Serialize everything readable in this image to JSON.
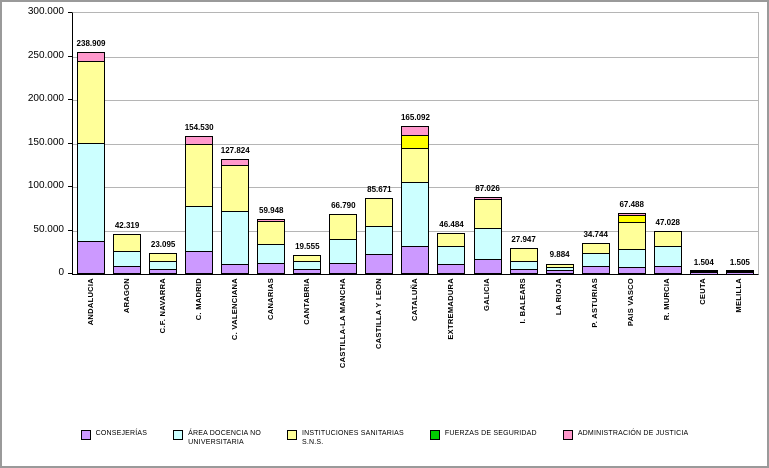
{
  "chart_data": {
    "type": "bar",
    "stacked": true,
    "title": "",
    "xlabel": "",
    "ylabel": "",
    "ylim": [
      0,
      300000
    ],
    "ytick_interval": 50000,
    "ytick_labels": [
      "300.000",
      "250.000",
      "200.000",
      "150.000",
      "100.000",
      "50.000",
      "0"
    ],
    "grid": true,
    "legend_position": "bottom",
    "categories": [
      "ANDALUCIA",
      "ARAGON",
      "C.F. NAVARRA",
      "C. MADRID",
      "C. VALENCIANA",
      "CANARIAS",
      "CANTABRIA",
      "CASTILLA-LA MANCHA",
      "CASTILLA Y LEON",
      "CATALUÑA",
      "EXTREMADURA",
      "GALICIA",
      "I. BALEARS",
      "LA RIOJA",
      "P. ASTURIAS",
      "PAIS VASCO",
      "R. MURCIA",
      "CEUTA",
      "MELILLA"
    ],
    "total_labels": [
      "238.909",
      "42.319",
      "23.095",
      "154.530",
      "127.824",
      "59.948",
      "19.555",
      "66.790",
      "85.671",
      "165.092",
      "46.484",
      "87.026",
      "27.947",
      "9.884",
      "34.744",
      "67.488",
      "47.028",
      "1.504",
      "1.505"
    ],
    "totals": [
      238909,
      42319,
      23095,
      154530,
      127824,
      59948,
      19555,
      66790,
      85671,
      165092,
      46484,
      87026,
      27947,
      9884,
      34744,
      67488,
      47028,
      1504,
      1505
    ],
    "series": [
      {
        "name": "CONSEJERÍAS",
        "color": "#CC99FF",
        "values_estimated": true,
        "values": [
          36000,
          7000,
          3100,
          24000,
          9000,
          10500,
          3100,
          10700,
          20400,
          30000,
          9000,
          14600,
          3100,
          2000,
          7000,
          6000,
          7000,
          400,
          400
        ]
      },
      {
        "name": "ÁREA DOCENCIA NO UNIVERSITARIA",
        "color": "#CCFFFF",
        "values_estimated": true,
        "values": [
          112000,
          17200,
          9500,
          52000,
          61000,
          21500,
          9500,
          26900,
          32500,
          73000,
          21000,
          36300,
          9500,
          4000,
          15200,
          20000,
          23000,
          600,
          600
        ]
      },
      {
        "name": "INSTITUCIONES SANITARIAS S.N.S.",
        "color": "#FFFF99",
        "values_estimated": true,
        "values": [
          94500,
          19100,
          9600,
          71000,
          53500,
          27000,
          7000,
          29100,
          32500,
          40000,
          15300,
          33000,
          15000,
          3800,
          11500,
          31500,
          17000,
          500,
          500
        ]
      },
      {
        "name": "FUERZAS DE SEGURIDAD",
        "color": "#00CC00",
        "bar_color": "#FFFF00",
        "values_estimated": true,
        "values": [
          0,
          0,
          0,
          0,
          0,
          0,
          0,
          0,
          0,
          15000,
          0,
          0,
          0,
          0,
          0,
          8000,
          0,
          0,
          0
        ]
      },
      {
        "name": "ADMINISTRACIÓN DE JUSTICIA",
        "color": "#FF99CC",
        "values_estimated": true,
        "values": [
          10000,
          0,
          0,
          9500,
          6000,
          1500,
          0,
          0,
          0,
          9500,
          0,
          2200,
          0,
          0,
          0,
          1900,
          0,
          0,
          0
        ]
      }
    ],
    "legend_items": [
      {
        "label": "CONSEJERÍAS",
        "label2": "",
        "color": "#CC99FF"
      },
      {
        "label": "ÁREA DOCENCIA NO",
        "label2": "UNIVERSITARIA",
        "color": "#CCFFFF"
      },
      {
        "label": "INSTITUCIONES SANITARIAS",
        "label2": "S.N.S.",
        "color": "#FFFF99"
      },
      {
        "label": "FUERZAS DE SEGURIDAD",
        "label2": "",
        "color": "#00CC00"
      },
      {
        "label": "ADMINISTRACIÓN DE JUSTICIA",
        "label2": "",
        "color": "#FF99CC"
      }
    ],
    "colors": {
      "gridline": "#b5b5b5",
      "axis": "#000000",
      "frame": "#9a9a9a",
      "background": "#ffffff"
    }
  }
}
